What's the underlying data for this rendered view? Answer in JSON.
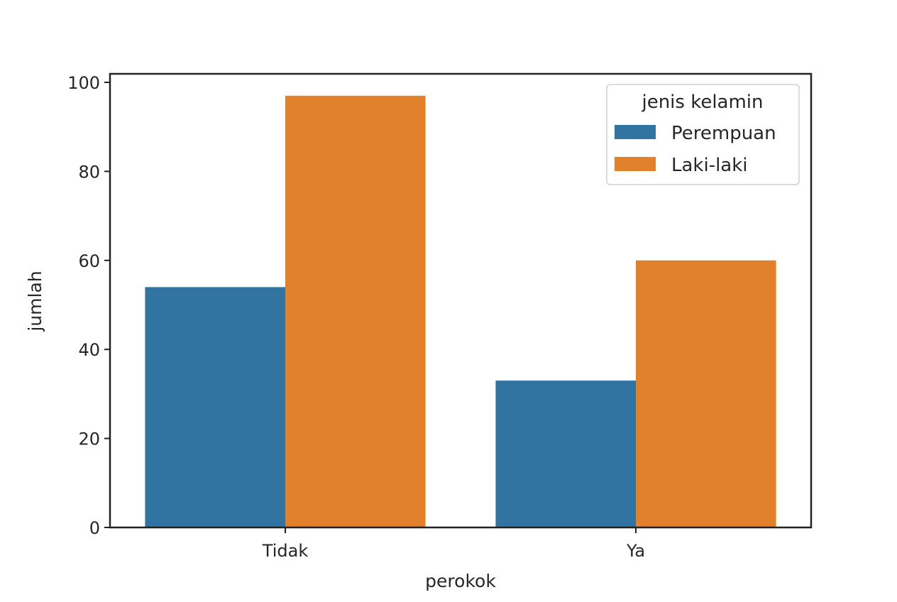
{
  "chart_data": {
    "type": "bar",
    "title": "",
    "xlabel": "perokok",
    "ylabel": "jumlah",
    "categories": [
      "Tidak",
      "Ya"
    ],
    "series": [
      {
        "name": "Perempuan",
        "values": [
          54,
          33
        ],
        "color": "#3274a1"
      },
      {
        "name": "Laki-laki",
        "values": [
          97,
          60
        ],
        "color": "#e1812c"
      }
    ],
    "ylim": [
      0,
      100
    ],
    "yticks": [
      0,
      20,
      40,
      60,
      80,
      100
    ],
    "grid": false,
    "legend": {
      "title": "jenis kelamin",
      "position": "upper right"
    }
  }
}
